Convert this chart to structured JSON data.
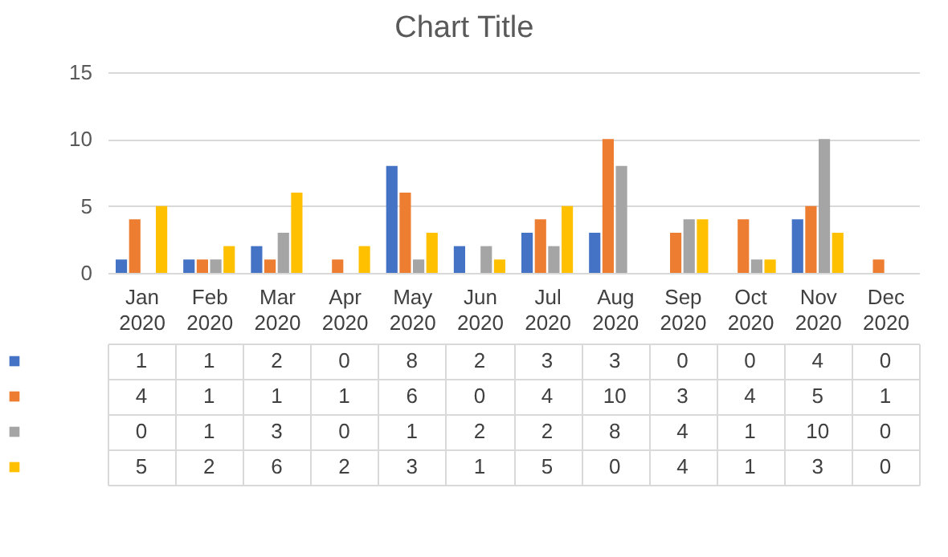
{
  "chart_data": {
    "type": "bar",
    "title": "Chart Title",
    "categories": [
      "Jan 2020",
      "Feb 2020",
      "Mar 2020",
      "Apr 2020",
      "May 2020",
      "Jun 2020",
      "Jul 2020",
      "Aug 2020",
      "Sep 2020",
      "Oct 2020",
      "Nov 2020",
      "Dec 2020"
    ],
    "series": [
      {
        "color": "#4472c4",
        "values": [
          1,
          1,
          2,
          0,
          8,
          2,
          3,
          3,
          0,
          0,
          4,
          0
        ]
      },
      {
        "color": "#ed7d31",
        "values": [
          4,
          1,
          1,
          1,
          6,
          0,
          4,
          10,
          3,
          4,
          5,
          1
        ]
      },
      {
        "color": "#a5a5a5",
        "values": [
          0,
          1,
          3,
          0,
          1,
          2,
          2,
          8,
          4,
          1,
          10,
          0
        ]
      },
      {
        "color": "#ffc000",
        "values": [
          5,
          2,
          6,
          2,
          3,
          1,
          5,
          0,
          4,
          1,
          3,
          0
        ]
      }
    ],
    "ylim": [
      0,
      15
    ],
    "yticks": [
      0,
      5,
      10,
      15
    ],
    "grid": "y",
    "data_labels": true
  }
}
